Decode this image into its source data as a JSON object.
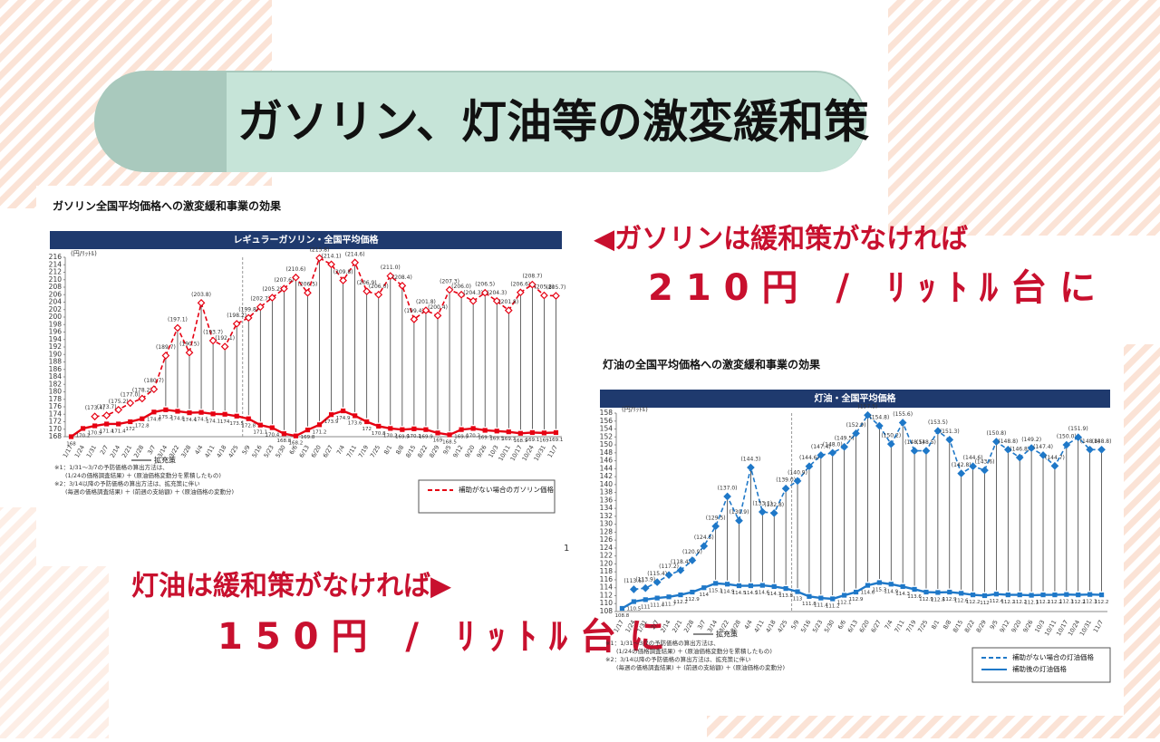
{
  "header": {
    "title": "ガソリン、灯油等の激変緩和策"
  },
  "callouts": [
    {
      "lead": "◀ガソリンは緩和策がなければ",
      "price": "210円 / ﾘｯﾄﾙ台に"
    },
    {
      "lead": "灯油は緩和策がなければ▶",
      "price": "150円 / ﾘｯﾄﾙ台に"
    }
  ],
  "page_number": "1",
  "chart_data": [
    {
      "type": "line",
      "title": "ガソリン全国平均価格への激変緩和事業の効果",
      "header": "レギュラーガソリン・全国平均価格",
      "y_unit": "(円/ﾘｯﾄﾙ)",
      "annotation": "拡充策",
      "categories": [
        "1/17",
        "1/24",
        "1/31",
        "2/7",
        "2/14",
        "2/21",
        "2/28",
        "3/7",
        "3/14",
        "3/22",
        "3/28",
        "4/4",
        "4/11",
        "4/18",
        "4/25",
        "5/9",
        "5/16",
        "5/23",
        "5/30",
        "6/6",
        "6/13",
        "6/20",
        "6/27",
        "7/4",
        "7/11",
        "7/19",
        "7/25",
        "8/1",
        "8/8",
        "8/15",
        "8/22",
        "8/29",
        "9/5",
        "9/12",
        "9/20",
        "9/26",
        "10/3",
        "10/11",
        "10/17",
        "10/24",
        "10/31",
        "11/7"
      ],
      "series": [
        {
          "name": "補助がない場合のガソリン価格",
          "color": "#e60012",
          "style": "dashed",
          "values": [
            null,
            null,
            173.4,
            173.7,
            175.2,
            177.0,
            178.2,
            180.7,
            189.7,
            197.1,
            190.5,
            203.8,
            193.7,
            192.1,
            198.2,
            199.8,
            202.7,
            205.2,
            207.6,
            210.6,
            206.5,
            215.8,
            214.1,
            209.8,
            214.6,
            206.9,
            206.0,
            211.0,
            208.4,
            199.4,
            201.8,
            200.4,
            207.3,
            206.0,
            204.3,
            206.5,
            204.3,
            201.8,
            206.6,
            208.7,
            205.8,
            205.7
          ],
          "value_labels": [
            null,
            null,
            "(173.4)",
            "(173.7)",
            "(175.2)",
            "(177.0)",
            "(178.2)",
            "(180.7)",
            "(189.7)",
            "(197.1)",
            "(190.5)",
            "(203.8)",
            "(193.7)",
            "(192.1)",
            "(198.2)",
            "(199.8)",
            "(202.7)",
            "(205.2)",
            "(207.6)",
            "(210.6)",
            "(206.5)",
            "(215.8)",
            "(214.1)",
            "(209.8)",
            "(214.6)",
            "(206.9)",
            "(206.0)",
            "(211.0)",
            "(208.4)",
            "(199.4)",
            "(201.8)",
            "(200.4)",
            "(207.3)",
            "(206.0)",
            "(204.3)",
            "(206.5)",
            "(204.3)",
            "(201.8)",
            "(206.6)",
            "(208.7)",
            "(205.8)",
            "(205.7)"
          ]
        },
        {
          "color": "#e60012",
          "style": "solid",
          "values": [
            168.0,
            170.2,
            170.9,
            171.4,
            171.4,
            172.0,
            172.8,
            174.6,
            175.2,
            174.8,
            174.4,
            174.5,
            174.1,
            174.0,
            173.5,
            172.8,
            171.1,
            170.4,
            168.8,
            168.2,
            169.8,
            171.2,
            173.9,
            174.9,
            173.6,
            172.0,
            170.8,
            170.2,
            169.9,
            170.1,
            169.9,
            169.0,
            168.5,
            169.9,
            170.2,
            169.7,
            169.5,
            169.3,
            168.9,
            169.1,
            169.0,
            169.1
          ]
        }
      ],
      "ylim": [
        168,
        216
      ],
      "yticks": [
        168,
        170,
        172,
        174,
        176,
        178,
        180,
        182,
        184,
        186,
        188,
        190,
        192,
        194,
        196,
        198,
        200,
        202,
        204,
        206,
        208,
        210,
        212,
        214,
        216
      ],
      "grid": false,
      "notes": [
        "※1：1/31～3/7の予防価格の算出方法は、",
        "(1/24の価格調査結果) ＋ (原油価格変動分を累積したもの)",
        "※2：3/14以降の予防価格の算出方法は、拡充策に伴い",
        "(毎週の価格調査結果) ＋ (前週の支給額) ＋ (原油価格の変動分)"
      ]
    },
    {
      "type": "line",
      "title": "灯油の全国平均価格への激変緩和事業の効果",
      "header": "灯油・全国平均価格",
      "y_unit": "(円/ﾘｯﾄﾙ)",
      "annotation": "拡充策",
      "categories": [
        "1/17",
        "1/24",
        "1/31",
        "2/7",
        "2/14",
        "2/21",
        "2/28",
        "3/7",
        "3/14",
        "3/22",
        "3/28",
        "4/4",
        "4/11",
        "4/18",
        "4/25",
        "5/9",
        "5/16",
        "5/23",
        "5/30",
        "6/6",
        "6/13",
        "6/20",
        "6/27",
        "7/4",
        "7/11",
        "7/19",
        "7/25",
        "8/1",
        "8/8",
        "8/15",
        "8/22",
        "8/29",
        "9/5",
        "9/12",
        "9/20",
        "9/26",
        "10/3",
        "10/11",
        "10/17",
        "10/24",
        "10/31",
        "11/7"
      ],
      "series": [
        {
          "name": "補助がない場合の灯油価格",
          "color": "#1f78c8",
          "style": "dashed",
          "values": [
            null,
            113.6,
            113.9,
            115.4,
            117.2,
            118.4,
            120.9,
            124.5,
            129.5,
            137.0,
            130.9,
            144.3,
            133.1,
            132.8,
            139.0,
            140.9,
            144.6,
            147.4,
            148.0,
            149.5,
            152.9,
            157.5,
            154.8,
            150.2,
            155.6,
            148.5,
            148.5,
            153.5,
            151.3,
            142.8,
            144.6,
            143.6,
            150.8,
            148.8,
            146.8,
            149.2,
            147.4,
            144.7,
            150.0,
            151.9,
            148.8,
            148.8
          ],
          "value_labels": [
            null,
            "(113.6)",
            "(113.9)",
            "(115.4)",
            "(117.2)",
            "(118.4)",
            "(120.9)",
            "(124.5)",
            "(129.5)",
            "(137.0)",
            "(130.9)",
            "(144.3)",
            "(133.1)",
            "(132.8)",
            "(139.0)",
            "(140.9)",
            "(144.6)",
            "(147.4)",
            "(148.0)",
            "(149.5)",
            "(152.9)",
            "(157.5)",
            "(154.8)",
            "(150.2)",
            "(155.6)",
            "(148.5)",
            "(148.5)",
            "(153.5)",
            "(151.3)",
            "(142.8)",
            "(144.6)",
            "(143.6)",
            "(150.8)",
            "(148.8)",
            "(146.8)",
            "(149.2)",
            "(147.4)",
            "(144.7)",
            "(150.0)",
            "(151.9)",
            "(148.8)",
            "(148.8)"
          ]
        },
        {
          "name": "補助後の灯油価格",
          "color": "#1f78c8",
          "style": "solid",
          "values": [
            108.8,
            110.5,
            111.0,
            111.4,
            111.7,
            112.2,
            112.9,
            114.0,
            115.1,
            114.9,
            114.5,
            114.5,
            114.6,
            114.3,
            113.8,
            113.0,
            111.8,
            111.4,
            111.2,
            112.1,
            112.9,
            114.6,
            115.3,
            114.9,
            114.3,
            113.6,
            112.9,
            112.8,
            112.9,
            112.6,
            112.2,
            112.0,
            112.4,
            112.2,
            112.2,
            112.1,
            112.2,
            112.2,
            112.3,
            112.2,
            112.3,
            112.2
          ]
        }
      ],
      "ylim": [
        108,
        158
      ],
      "yticks": [
        108,
        110,
        112,
        114,
        116,
        118,
        120,
        122,
        124,
        126,
        128,
        130,
        132,
        134,
        136,
        138,
        140,
        142,
        144,
        146,
        148,
        150,
        152,
        154,
        156,
        158
      ],
      "grid": false,
      "notes": [
        "※1：1/31～3/7の予防価格の算出方法は、",
        "(1/24の価格調査結果) ＋ (原油価格変動分を累積したもの)",
        "※2：3/14以降の予防価格の算出方法は、拡充策に伴い",
        "(毎週の価格調査結果) ＋ (前週の支給額) ＋ (原油価格の変動分)"
      ]
    }
  ]
}
